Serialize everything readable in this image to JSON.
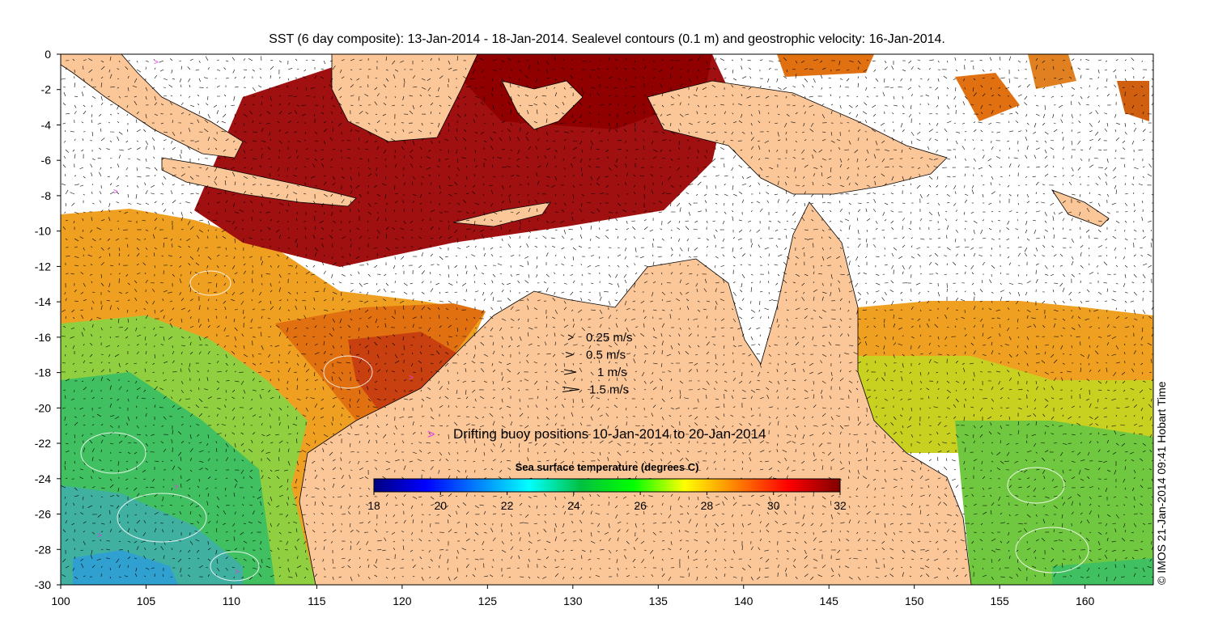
{
  "title": "SST (6 day composite): 13-Jan-2014 - 18-Jan-2014. Sealevel contours (0.1 m) and geostrophic velocity: 16-Jan-2014.",
  "credit": "© IMOS 21-Jan-2014 09:41 Hobart Time",
  "x_axis": {
    "range": [
      100,
      164
    ],
    "ticks": [
      "100",
      "105",
      "110",
      "115",
      "120",
      "125",
      "130",
      "135",
      "140",
      "145",
      "150",
      "155",
      "160"
    ]
  },
  "y_axis": {
    "range": [
      -30,
      0
    ],
    "ticks": [
      "0",
      "-2",
      "-4",
      "-6",
      "-8",
      "-10",
      "-12",
      "-14",
      "-16",
      "-18",
      "-20",
      "-22",
      "-24",
      "-26",
      "-28",
      "-30"
    ]
  },
  "velocity_legend": [
    {
      "label": "0.25 m/s",
      "speed": 0.25
    },
    {
      "label": "0.5 m/s",
      "speed": 0.5
    },
    {
      "label": "1 m/s",
      "speed": 1
    },
    {
      "label": "1.5 m/s",
      "speed": 1.5
    }
  ],
  "buoy_legend": {
    "symbol": ">",
    "label": "Drifting buoy positions 10-Jan-2014 to 20-Jan-2014",
    "color": "#e040e0"
  },
  "colorbar": {
    "title": "Sea surface temperature (degrees C)",
    "min": 18,
    "max": 32,
    "tick_labels": [
      "18",
      "20",
      "22",
      "24",
      "26",
      "28",
      "30",
      "32"
    ],
    "colors": [
      "#00007f",
      "#0000ff",
      "#0080ff",
      "#00ffff",
      "#00c040",
      "#00ff00",
      "#ffff00",
      "#ff8000",
      "#ff0000",
      "#800000"
    ]
  },
  "colors": {
    "land": "#fbc799",
    "no_data": "#ffffff",
    "arrow": "#000000"
  }
}
